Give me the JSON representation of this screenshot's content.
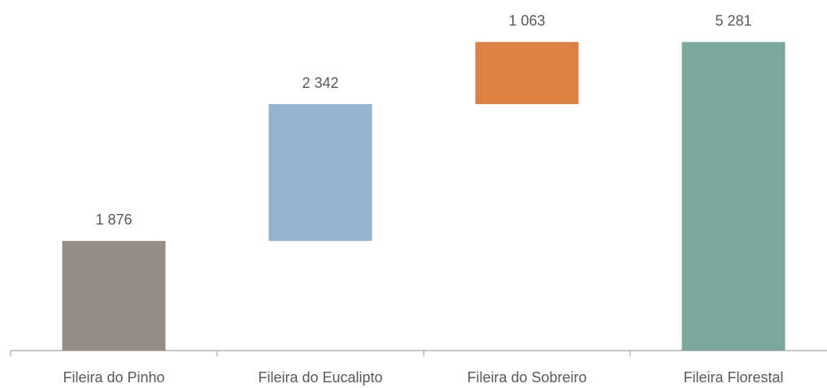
{
  "chart_data": {
    "type": "waterfall",
    "categories": [
      "Fileira do Pinho",
      "Fileira do Eucalipto",
      "Fileira do Sobreiro",
      "Fileira Florestal"
    ],
    "values": [
      1876,
      2342,
      1063,
      5281
    ],
    "value_labels": [
      "1 876",
      "2 342",
      "1 063",
      "5 281"
    ],
    "is_total": [
      false,
      false,
      false,
      true
    ],
    "colors": [
      "#958b87",
      "#95b3d0",
      "#dc8044",
      "#7ba89c"
    ],
    "ylim": [
      0,
      6000
    ]
  }
}
